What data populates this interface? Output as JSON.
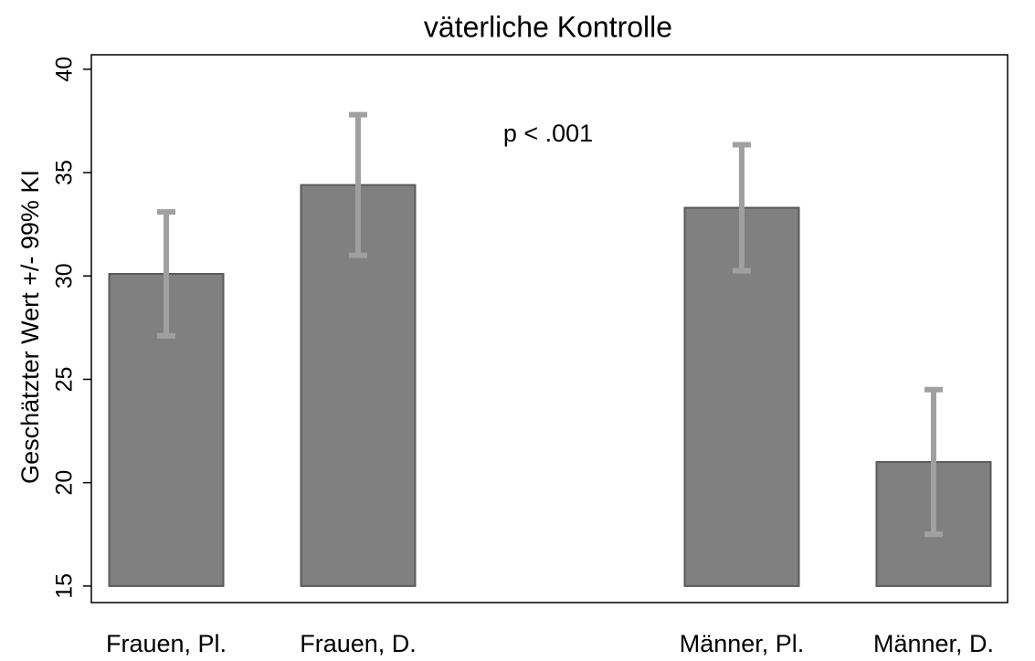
{
  "chart_data": {
    "type": "bar",
    "title": "väterliche Kontrolle",
    "y_label": "Geschätzter Wert +/- 99% KI",
    "annotation": "p < .001",
    "categories": [
      "Frauen, Pl.",
      "Frauen, D.",
      null,
      "Männer, Pl.",
      "Männer, D."
    ],
    "values": [
      30.1,
      34.4,
      null,
      33.3,
      21.0
    ],
    "errors": [
      3.0,
      3.4,
      null,
      3.05,
      3.5
    ],
    "color": "#808080",
    "error_color": "#a0a0a0",
    "ylim": [
      14.2,
      40.7
    ],
    "yticks": [
      15,
      20,
      25,
      30,
      35,
      40
    ],
    "grid": false
  }
}
